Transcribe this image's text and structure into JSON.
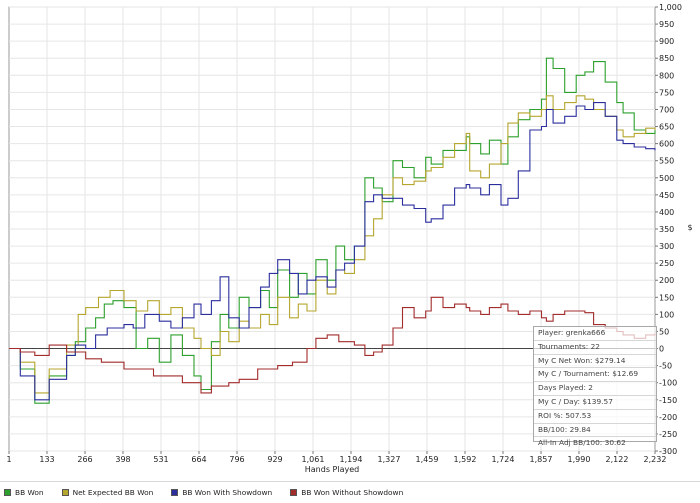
{
  "chart_data": {
    "type": "line",
    "xlabel": "Hands Played",
    "ylabel": "$",
    "xlim": [
      1,
      2232
    ],
    "ylim": [
      -300,
      1000
    ],
    "x_ticks": [
      "1",
      "133",
      "266",
      "398",
      "531",
      "664",
      "796",
      "929",
      "1,061",
      "1,194",
      "1,327",
      "1,459",
      "1,592",
      "1,724",
      "1,857",
      "1,990",
      "2,122",
      "2,232"
    ],
    "y_ticks": [
      "1,000",
      "950",
      "900",
      "850",
      "800",
      "750",
      "700",
      "650",
      "600",
      "550",
      "500",
      "450",
      "400",
      "350",
      "300",
      "250",
      "200",
      "150",
      "100",
      "50",
      "0",
      "-50",
      "-100",
      "-150",
      "-200",
      "-250",
      "-300"
    ],
    "series": [
      {
        "name": "BB Won",
        "color": "#2ca02c",
        "points": [
          [
            1,
            0
          ],
          [
            40,
            -60
          ],
          [
            90,
            -160
          ],
          [
            140,
            -80
          ],
          [
            200,
            -20
          ],
          [
            230,
            20
          ],
          [
            266,
            60
          ],
          [
            300,
            90
          ],
          [
            330,
            130
          ],
          [
            360,
            140
          ],
          [
            398,
            120
          ],
          [
            440,
            0
          ],
          [
            480,
            30
          ],
          [
            520,
            -40
          ],
          [
            560,
            40
          ],
          [
            600,
            -20
          ],
          [
            640,
            -80
          ],
          [
            664,
            -120
          ],
          [
            700,
            20
          ],
          [
            730,
            100
          ],
          [
            760,
            60
          ],
          [
            796,
            150
          ],
          [
            830,
            120
          ],
          [
            870,
            170
          ],
          [
            900,
            120
          ],
          [
            929,
            230
          ],
          [
            970,
            150
          ],
          [
            1000,
            220
          ],
          [
            1030,
            160
          ],
          [
            1061,
            260
          ],
          [
            1100,
            200
          ],
          [
            1130,
            300
          ],
          [
            1160,
            260
          ],
          [
            1194,
            300
          ],
          [
            1230,
            500
          ],
          [
            1260,
            470
          ],
          [
            1290,
            430
          ],
          [
            1327,
            550
          ],
          [
            1360,
            530
          ],
          [
            1400,
            500
          ],
          [
            1440,
            560
          ],
          [
            1459,
            540
          ],
          [
            1500,
            580
          ],
          [
            1540,
            580
          ],
          [
            1580,
            620
          ],
          [
            1592,
            600
          ],
          [
            1630,
            570
          ],
          [
            1660,
            610
          ],
          [
            1700,
            540
          ],
          [
            1724,
            620
          ],
          [
            1760,
            670
          ],
          [
            1800,
            700
          ],
          [
            1840,
            730
          ],
          [
            1857,
            850
          ],
          [
            1880,
            820
          ],
          [
            1920,
            750
          ],
          [
            1960,
            800
          ],
          [
            1990,
            810
          ],
          [
            2020,
            840
          ],
          [
            2060,
            780
          ],
          [
            2100,
            720
          ],
          [
            2122,
            690
          ],
          [
            2160,
            640
          ],
          [
            2200,
            630
          ],
          [
            2232,
            640
          ]
        ]
      },
      {
        "name": "Net Expected BB Won",
        "color": "#b5a62e",
        "points": [
          [
            1,
            0
          ],
          [
            40,
            -40
          ],
          [
            90,
            -130
          ],
          [
            140,
            -60
          ],
          [
            200,
            10
          ],
          [
            240,
            100
          ],
          [
            266,
            120
          ],
          [
            310,
            150
          ],
          [
            350,
            170
          ],
          [
            398,
            140
          ],
          [
            440,
            110
          ],
          [
            480,
            140
          ],
          [
            520,
            100
          ],
          [
            560,
            120
          ],
          [
            600,
            60
          ],
          [
            640,
            30
          ],
          [
            664,
            0
          ],
          [
            700,
            -20
          ],
          [
            730,
            50
          ],
          [
            760,
            20
          ],
          [
            796,
            80
          ],
          [
            830,
            60
          ],
          [
            870,
            100
          ],
          [
            900,
            70
          ],
          [
            929,
            150
          ],
          [
            970,
            90
          ],
          [
            1000,
            130
          ],
          [
            1030,
            110
          ],
          [
            1061,
            200
          ],
          [
            1100,
            160
          ],
          [
            1130,
            230
          ],
          [
            1160,
            220
          ],
          [
            1194,
            260
          ],
          [
            1230,
            330
          ],
          [
            1260,
            380
          ],
          [
            1290,
            450
          ],
          [
            1327,
            500
          ],
          [
            1360,
            480
          ],
          [
            1400,
            490
          ],
          [
            1440,
            520
          ],
          [
            1459,
            530
          ],
          [
            1500,
            560
          ],
          [
            1540,
            600
          ],
          [
            1580,
            630
          ],
          [
            1592,
            520
          ],
          [
            1630,
            500
          ],
          [
            1660,
            540
          ],
          [
            1700,
            600
          ],
          [
            1724,
            660
          ],
          [
            1760,
            690
          ],
          [
            1800,
            680
          ],
          [
            1840,
            700
          ],
          [
            1857,
            740
          ],
          [
            1880,
            700
          ],
          [
            1920,
            720
          ],
          [
            1960,
            740
          ],
          [
            1990,
            730
          ],
          [
            2020,
            700
          ],
          [
            2060,
            680
          ],
          [
            2100,
            640
          ],
          [
            2122,
            620
          ],
          [
            2160,
            630
          ],
          [
            2200,
            645
          ],
          [
            2232,
            640
          ]
        ]
      },
      {
        "name": "BB Won With Showdown",
        "color": "#2b2f9e",
        "points": [
          [
            1,
            0
          ],
          [
            40,
            -80
          ],
          [
            90,
            -150
          ],
          [
            140,
            -90
          ],
          [
            200,
            -20
          ],
          [
            230,
            10
          ],
          [
            266,
            0
          ],
          [
            300,
            40
          ],
          [
            340,
            60
          ],
          [
            398,
            70
          ],
          [
            430,
            60
          ],
          [
            470,
            100
          ],
          [
            520,
            80
          ],
          [
            560,
            60
          ],
          [
            600,
            90
          ],
          [
            640,
            130
          ],
          [
            664,
            100
          ],
          [
            700,
            140
          ],
          [
            730,
            210
          ],
          [
            760,
            90
          ],
          [
            796,
            60
          ],
          [
            830,
            120
          ],
          [
            870,
            180
          ],
          [
            900,
            220
          ],
          [
            929,
            260
          ],
          [
            970,
            220
          ],
          [
            1000,
            160
          ],
          [
            1030,
            200
          ],
          [
            1061,
            210
          ],
          [
            1100,
            180
          ],
          [
            1130,
            230
          ],
          [
            1160,
            250
          ],
          [
            1194,
            300
          ],
          [
            1230,
            430
          ],
          [
            1260,
            450
          ],
          [
            1290,
            440
          ],
          [
            1327,
            440
          ],
          [
            1360,
            420
          ],
          [
            1400,
            410
          ],
          [
            1440,
            370
          ],
          [
            1459,
            380
          ],
          [
            1500,
            420
          ],
          [
            1540,
            470
          ],
          [
            1580,
            480
          ],
          [
            1592,
            470
          ],
          [
            1630,
            450
          ],
          [
            1660,
            480
          ],
          [
            1700,
            420
          ],
          [
            1724,
            440
          ],
          [
            1760,
            520
          ],
          [
            1800,
            640
          ],
          [
            1840,
            650
          ],
          [
            1857,
            700
          ],
          [
            1880,
            660
          ],
          [
            1920,
            680
          ],
          [
            1960,
            710
          ],
          [
            1990,
            700
          ],
          [
            2020,
            720
          ],
          [
            2060,
            680
          ],
          [
            2100,
            610
          ],
          [
            2122,
            600
          ],
          [
            2160,
            590
          ],
          [
            2200,
            585
          ],
          [
            2232,
            580
          ]
        ]
      },
      {
        "name": "BB Won Without Showdown",
        "color": "#a22b2b",
        "points": [
          [
            1,
            0
          ],
          [
            40,
            -10
          ],
          [
            90,
            -20
          ],
          [
            140,
            10
          ],
          [
            200,
            -10
          ],
          [
            266,
            -30
          ],
          [
            320,
            -40
          ],
          [
            398,
            -60
          ],
          [
            450,
            -60
          ],
          [
            500,
            -80
          ],
          [
            560,
            -80
          ],
          [
            600,
            -100
          ],
          [
            664,
            -130
          ],
          [
            700,
            -110
          ],
          [
            760,
            -100
          ],
          [
            796,
            -90
          ],
          [
            860,
            -60
          ],
          [
            929,
            -50
          ],
          [
            980,
            -40
          ],
          [
            1030,
            0
          ],
          [
            1061,
            30
          ],
          [
            1100,
            40
          ],
          [
            1140,
            20
          ],
          [
            1194,
            10
          ],
          [
            1230,
            -20
          ],
          [
            1260,
            -10
          ],
          [
            1290,
            10
          ],
          [
            1327,
            60
          ],
          [
            1360,
            120
          ],
          [
            1400,
            90
          ],
          [
            1440,
            110
          ],
          [
            1459,
            150
          ],
          [
            1500,
            120
          ],
          [
            1540,
            130
          ],
          [
            1580,
            120
          ],
          [
            1592,
            110
          ],
          [
            1630,
            100
          ],
          [
            1660,
            120
          ],
          [
            1700,
            130
          ],
          [
            1724,
            110
          ],
          [
            1760,
            100
          ],
          [
            1800,
            110
          ],
          [
            1840,
            90
          ],
          [
            1857,
            80
          ],
          [
            1880,
            100
          ],
          [
            1920,
            110
          ],
          [
            1960,
            110
          ],
          [
            1990,
            105
          ],
          [
            2020,
            70
          ],
          [
            2060,
            60
          ],
          [
            2100,
            50
          ],
          [
            2122,
            40
          ],
          [
            2160,
            30
          ],
          [
            2200,
            40
          ],
          [
            2232,
            45
          ]
        ]
      }
    ]
  },
  "stats": [
    "Player: grenka666",
    "Tournaments: 22",
    "My C Net Won: $279.14",
    "My C / Tournament: $12.69",
    "Days Played: 2",
    "My C / Day: $139.57",
    "ROI %: 507.53",
    "BB/100: 29.84",
    "All-In Adj BB/100: 30.62"
  ],
  "legend": [
    {
      "label": "BB Won",
      "color": "#2ca02c"
    },
    {
      "label": "Net Expected BB Won",
      "color": "#b5a62e"
    },
    {
      "label": "BB Won With Showdown",
      "color": "#2b2f9e"
    },
    {
      "label": "BB Won Without Showdown",
      "color": "#a22b2b"
    }
  ]
}
